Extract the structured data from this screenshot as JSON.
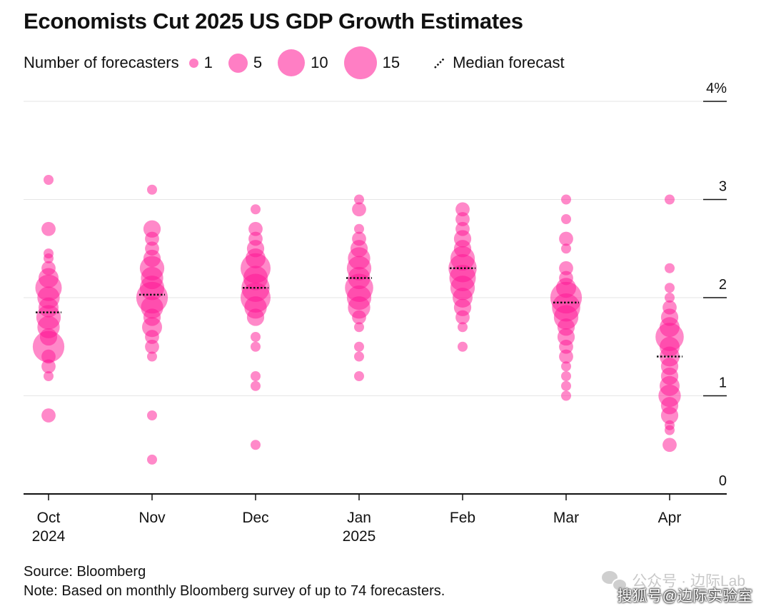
{
  "title": "Economists Cut 2025 US GDP Growth Estimates",
  "legend": {
    "label": "Number of forecasters",
    "sizes": [
      {
        "label": "1",
        "count": 1
      },
      {
        "label": "5",
        "count": 5
      },
      {
        "label": "10",
        "count": 10
      },
      {
        "label": "15",
        "count": 15
      }
    ],
    "median_label": "Median forecast"
  },
  "footer": {
    "source": "Source: Bloomberg",
    "note": "Note: Based on monthly Bloomberg survey of up to 74 forecasters."
  },
  "watermarks": {
    "line1": "公众号 · 边际Lab",
    "line2": "搜狐号@边际实验室"
  },
  "chart_data": {
    "type": "scatter",
    "title": "Economists Cut 2025 US GDP Growth Estimates",
    "categories": [
      "Oct",
      "Nov",
      "Dec",
      "Jan",
      "Feb",
      "Mar",
      "Apr"
    ],
    "category_sublabels": [
      "2024",
      "",
      "",
      "2025",
      "",
      "",
      ""
    ],
    "ylim": [
      0,
      4
    ],
    "y_ticks": [
      0,
      1,
      2,
      3,
      4
    ],
    "y_tick_labels": [
      "0",
      "1",
      "2",
      "3",
      "4%"
    ],
    "point_color": "#ff1493",
    "median_color": "#111111",
    "medians": [
      1.85,
      2.03,
      2.1,
      2.2,
      2.3,
      1.95,
      1.4
    ],
    "series": [
      {
        "category": "Oct",
        "points": [
          {
            "y": 3.2,
            "n": 1
          },
          {
            "y": 2.7,
            "n": 2
          },
          {
            "y": 2.45,
            "n": 1
          },
          {
            "y": 2.4,
            "n": 1
          },
          {
            "y": 2.3,
            "n": 2
          },
          {
            "y": 2.2,
            "n": 4
          },
          {
            "y": 2.1,
            "n": 7
          },
          {
            "y": 2.0,
            "n": 5
          },
          {
            "y": 1.9,
            "n": 4
          },
          {
            "y": 1.8,
            "n": 6
          },
          {
            "y": 1.7,
            "n": 5
          },
          {
            "y": 1.6,
            "n": 3
          },
          {
            "y": 1.5,
            "n": 10
          },
          {
            "y": 1.4,
            "n": 2
          },
          {
            "y": 1.3,
            "n": 2
          },
          {
            "y": 1.2,
            "n": 1
          },
          {
            "y": 0.8,
            "n": 2
          }
        ]
      },
      {
        "category": "Nov",
        "points": [
          {
            "y": 3.1,
            "n": 1
          },
          {
            "y": 2.7,
            "n": 3
          },
          {
            "y": 2.6,
            "n": 2
          },
          {
            "y": 2.5,
            "n": 2
          },
          {
            "y": 2.4,
            "n": 3
          },
          {
            "y": 2.3,
            "n": 6
          },
          {
            "y": 2.2,
            "n": 5
          },
          {
            "y": 2.1,
            "n": 6
          },
          {
            "y": 2.0,
            "n": 10
          },
          {
            "y": 1.9,
            "n": 5
          },
          {
            "y": 1.8,
            "n": 3
          },
          {
            "y": 1.7,
            "n": 4
          },
          {
            "y": 1.6,
            "n": 2
          },
          {
            "y": 1.5,
            "n": 2
          },
          {
            "y": 1.4,
            "n": 1
          },
          {
            "y": 0.8,
            "n": 1
          },
          {
            "y": 0.35,
            "n": 1
          }
        ]
      },
      {
        "category": "Dec",
        "points": [
          {
            "y": 2.9,
            "n": 1
          },
          {
            "y": 2.7,
            "n": 2
          },
          {
            "y": 2.6,
            "n": 2
          },
          {
            "y": 2.5,
            "n": 3
          },
          {
            "y": 2.4,
            "n": 4
          },
          {
            "y": 2.3,
            "n": 9
          },
          {
            "y": 2.2,
            "n": 6
          },
          {
            "y": 2.1,
            "n": 8
          },
          {
            "y": 2.0,
            "n": 9
          },
          {
            "y": 1.9,
            "n": 5
          },
          {
            "y": 1.8,
            "n": 3
          },
          {
            "y": 1.6,
            "n": 1
          },
          {
            "y": 1.5,
            "n": 1
          },
          {
            "y": 1.2,
            "n": 1
          },
          {
            "y": 1.1,
            "n": 1
          },
          {
            "y": 0.5,
            "n": 1
          }
        ]
      },
      {
        "category": "Jan",
        "points": [
          {
            "y": 3.0,
            "n": 1
          },
          {
            "y": 2.9,
            "n": 2
          },
          {
            "y": 2.7,
            "n": 1
          },
          {
            "y": 2.6,
            "n": 2
          },
          {
            "y": 2.5,
            "n": 3
          },
          {
            "y": 2.4,
            "n": 5
          },
          {
            "y": 2.3,
            "n": 6
          },
          {
            "y": 2.2,
            "n": 5
          },
          {
            "y": 2.1,
            "n": 8
          },
          {
            "y": 2.0,
            "n": 6
          },
          {
            "y": 1.9,
            "n": 5
          },
          {
            "y": 1.8,
            "n": 2
          },
          {
            "y": 1.7,
            "n": 1
          },
          {
            "y": 1.5,
            "n": 1
          },
          {
            "y": 1.4,
            "n": 1
          },
          {
            "y": 1.2,
            "n": 1
          }
        ]
      },
      {
        "category": "Feb",
        "points": [
          {
            "y": 2.9,
            "n": 2
          },
          {
            "y": 2.8,
            "n": 2
          },
          {
            "y": 2.7,
            "n": 2
          },
          {
            "y": 2.6,
            "n": 3
          },
          {
            "y": 2.5,
            "n": 3
          },
          {
            "y": 2.4,
            "n": 6
          },
          {
            "y": 2.3,
            "n": 8
          },
          {
            "y": 2.2,
            "n": 7
          },
          {
            "y": 2.1,
            "n": 6
          },
          {
            "y": 2.0,
            "n": 4
          },
          {
            "y": 1.9,
            "n": 3
          },
          {
            "y": 1.8,
            "n": 2
          },
          {
            "y": 1.7,
            "n": 1
          },
          {
            "y": 1.5,
            "n": 1
          }
        ]
      },
      {
        "category": "Mar",
        "points": [
          {
            "y": 3.0,
            "n": 1
          },
          {
            "y": 2.8,
            "n": 1
          },
          {
            "y": 2.6,
            "n": 2
          },
          {
            "y": 2.5,
            "n": 1
          },
          {
            "y": 2.3,
            "n": 2
          },
          {
            "y": 2.2,
            "n": 2
          },
          {
            "y": 2.1,
            "n": 4
          },
          {
            "y": 2.0,
            "n": 10
          },
          {
            "y": 1.9,
            "n": 8
          },
          {
            "y": 1.8,
            "n": 6
          },
          {
            "y": 1.7,
            "n": 3
          },
          {
            "y": 1.6,
            "n": 3
          },
          {
            "y": 1.5,
            "n": 2
          },
          {
            "y": 1.4,
            "n": 2
          },
          {
            "y": 1.3,
            "n": 1
          },
          {
            "y": 1.2,
            "n": 1
          },
          {
            "y": 1.1,
            "n": 1
          },
          {
            "y": 1.0,
            "n": 1
          }
        ]
      },
      {
        "category": "Apr",
        "points": [
          {
            "y": 3.0,
            "n": 1
          },
          {
            "y": 2.3,
            "n": 1
          },
          {
            "y": 2.1,
            "n": 1
          },
          {
            "y": 2.0,
            "n": 1
          },
          {
            "y": 1.9,
            "n": 2
          },
          {
            "y": 1.8,
            "n": 3
          },
          {
            "y": 1.7,
            "n": 4
          },
          {
            "y": 1.6,
            "n": 8
          },
          {
            "y": 1.5,
            "n": 4
          },
          {
            "y": 1.4,
            "n": 4
          },
          {
            "y": 1.3,
            "n": 3
          },
          {
            "y": 1.2,
            "n": 3
          },
          {
            "y": 1.1,
            "n": 4
          },
          {
            "y": 1.0,
            "n": 5
          },
          {
            "y": 0.9,
            "n": 3
          },
          {
            "y": 0.8,
            "n": 3
          },
          {
            "y": 0.7,
            "n": 1
          },
          {
            "y": 0.65,
            "n": 1
          },
          {
            "y": 0.5,
            "n": 2
          }
        ]
      }
    ]
  }
}
